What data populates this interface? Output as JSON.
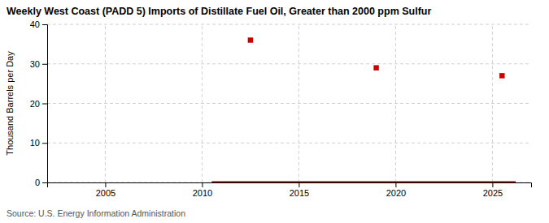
{
  "chart_data": {
    "type": "scatter",
    "title": "Weekly West Coast (PADD 5) Imports of Distillate Fuel Oil, Greater than 2000 ppm Sulfur",
    "y_label": "Thousand Barrels per Day",
    "annotations": [
      "Source: U.S. Energy Information Administration"
    ],
    "series": [
      {
        "type": "line",
        "color": "#800000",
        "x": [
          2010.5,
          2026.2
        ],
        "values": [
          0,
          0
        ]
      },
      {
        "type": "scatter",
        "color": "#cc0000",
        "marker": "square",
        "x": [
          2012.5,
          2019.0,
          2025.5
        ],
        "values": [
          36,
          29,
          27
        ]
      }
    ],
    "xlim": [
      2002,
      2027
    ],
    "ylim": [
      0,
      40
    ],
    "xticks": [
      2005,
      2010,
      2015,
      2020,
      2025
    ],
    "yticks": [
      0,
      10,
      20,
      30,
      40
    ],
    "grid": true
  }
}
